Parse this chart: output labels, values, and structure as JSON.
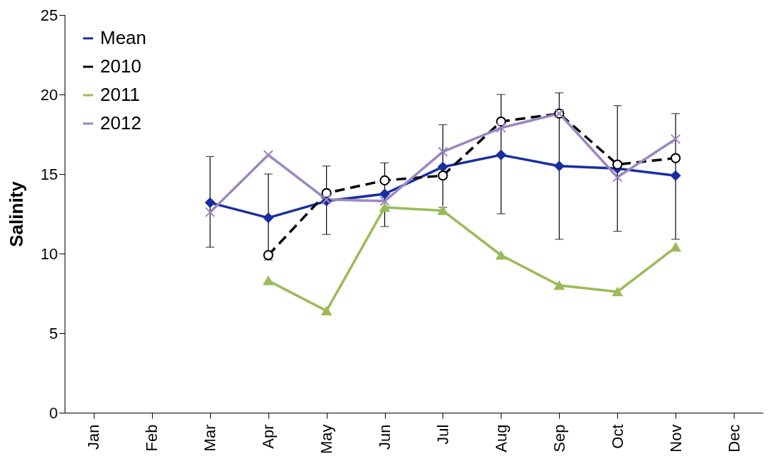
{
  "chart_data": {
    "type": "line",
    "ylabel": "Salinity",
    "categories": [
      "Jan",
      "Feb",
      "Mar",
      "Apr",
      "May",
      "Jun",
      "Jul",
      "Aug",
      "Sep",
      "Oct",
      "Nov",
      "Dec"
    ],
    "ylim": [
      0,
      25
    ],
    "yticks": [
      0,
      5,
      10,
      15,
      20,
      25
    ],
    "grid": false,
    "legend": "top left",
    "series": [
      {
        "name": "Mean",
        "color": "#1a2ea0",
        "marker": "diamond",
        "line_style": "solid",
        "values": [
          null,
          null,
          13.2,
          12.25,
          13.3,
          13.75,
          15.45,
          16.2,
          15.5,
          15.35,
          14.9,
          null
        ],
        "errors": [
          null,
          null,
          [
            10.4,
            16.1
          ],
          [
            9.6,
            15.0
          ],
          [
            11.2,
            15.5
          ],
          [
            11.7,
            15.7
          ],
          [
            12.9,
            18.1
          ],
          [
            12.5,
            20.0
          ],
          [
            10.9,
            20.1
          ],
          [
            11.4,
            19.3
          ],
          [
            10.9,
            18.8
          ],
          null
        ]
      },
      {
        "name": "2010",
        "color": "#000000",
        "marker": "circle",
        "line_style": "dashed",
        "values": [
          null,
          null,
          null,
          9.9,
          13.8,
          14.6,
          14.9,
          18.3,
          18.8,
          15.6,
          16.0,
          null
        ]
      },
      {
        "name": "2011",
        "color": "#9bbb59",
        "marker": "triangle",
        "line_style": "solid",
        "values": [
          null,
          null,
          null,
          8.3,
          6.4,
          12.9,
          12.7,
          9.9,
          8.0,
          7.6,
          10.4,
          null
        ]
      },
      {
        "name": "2012",
        "color": "#9b87c1",
        "marker": "cross",
        "line_style": "solid",
        "values": [
          null,
          null,
          12.6,
          16.2,
          13.4,
          13.3,
          16.4,
          17.9,
          18.8,
          14.8,
          17.2,
          null
        ]
      }
    ]
  }
}
